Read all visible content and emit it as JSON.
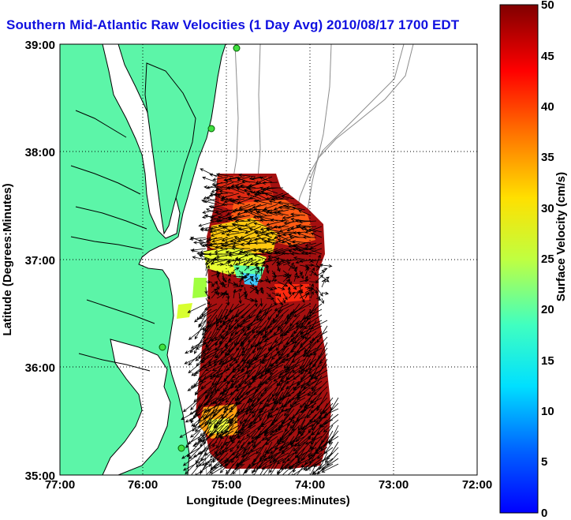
{
  "title": "Southern Mid-Atlantic Raw Velocities (1 Day Avg) 2010/08/17 1700 EDT",
  "map": {
    "xlabel": "Longitude (Degrees:Minutes)",
    "ylabel": "Latitude (Degrees:Minutes)",
    "x_ticks": [
      "77:00",
      "76:00",
      "75:00",
      "74:00",
      "73:00",
      "72:00"
    ],
    "y_ticks": [
      "39:00",
      "38:00",
      "37:00",
      "36:00",
      "35:00"
    ],
    "lon_range": [
      -77,
      -72
    ],
    "lat_range": [
      35,
      39
    ],
    "grid": "dotted",
    "land_color": "#5cf5a8",
    "coast_color": "#000000",
    "bathymetry_color": "#8c8c8c"
  },
  "colorbar": {
    "label": "Surface Velocity (cm/s)",
    "ticks": [
      "50",
      "45",
      "40",
      "35",
      "30",
      "25",
      "20",
      "15",
      "10",
      "5",
      "0"
    ],
    "range": [
      0,
      50
    ],
    "colormap": "jet"
  },
  "icons": {
    "station": "hf-radar-site-marker",
    "vector": "current-arrow"
  }
}
